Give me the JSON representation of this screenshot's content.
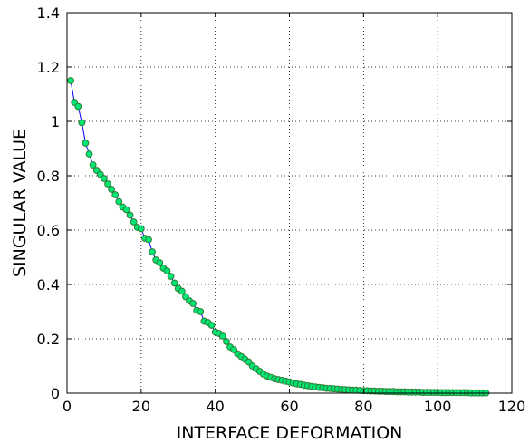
{
  "chart_data": {
    "type": "line",
    "title": "",
    "xlabel": "INTERFACE DEFORMATION",
    "ylabel": "SINGULAR VALUE",
    "xlim": [
      0,
      120
    ],
    "ylim": [
      0,
      1.4
    ],
    "xticks": [
      "0",
      "20",
      "40",
      "60",
      "80",
      "100",
      "120"
    ],
    "yticks": [
      "0",
      "0.2",
      "0.4",
      "0.6",
      "0.8",
      "1",
      "1.2",
      "1.4"
    ],
    "grid": true,
    "grid_style": "dotted",
    "legend": "none",
    "line_color": "#0000ff",
    "marker_fill": "#00e676",
    "marker_edge": "#2e7d32",
    "series": [
      {
        "x": [
          1,
          2,
          3,
          4,
          5,
          6,
          7,
          8,
          9,
          10,
          11,
          12,
          13,
          14,
          15,
          16,
          17,
          18,
          19,
          20,
          21,
          22,
          23,
          24,
          25,
          26,
          27,
          28,
          29,
          30,
          31,
          32,
          33,
          34,
          35,
          36,
          37,
          38,
          39,
          40,
          41,
          42,
          43,
          44,
          45,
          46,
          47,
          48,
          49,
          50,
          51,
          52,
          53,
          54,
          55,
          56,
          57,
          58,
          59,
          60,
          61,
          62,
          63,
          64,
          65,
          66,
          67,
          68,
          69,
          70,
          71,
          72,
          73,
          74,
          75,
          76,
          77,
          78,
          79,
          80,
          81,
          82,
          83,
          84,
          85,
          86,
          87,
          88,
          89,
          90,
          91,
          92,
          93,
          94,
          95,
          96,
          97,
          98,
          99,
          100,
          101,
          102,
          103,
          104,
          105,
          106,
          107,
          108,
          109,
          110,
          111,
          112,
          113
        ],
        "y": [
          1.15,
          1.07,
          1.055,
          0.995,
          0.92,
          0.88,
          0.84,
          0.82,
          0.805,
          0.79,
          0.77,
          0.75,
          0.73,
          0.705,
          0.685,
          0.675,
          0.655,
          0.63,
          0.61,
          0.605,
          0.57,
          0.565,
          0.52,
          0.49,
          0.48,
          0.46,
          0.45,
          0.43,
          0.405,
          0.385,
          0.375,
          0.355,
          0.34,
          0.33,
          0.305,
          0.3,
          0.265,
          0.26,
          0.25,
          0.225,
          0.22,
          0.21,
          0.19,
          0.17,
          0.16,
          0.145,
          0.135,
          0.125,
          0.115,
          0.1,
          0.09,
          0.08,
          0.07,
          0.063,
          0.058,
          0.053,
          0.05,
          0.047,
          0.044,
          0.041,
          0.037,
          0.034,
          0.032,
          0.029,
          0.027,
          0.025,
          0.023,
          0.021,
          0.02,
          0.018,
          0.017,
          0.016,
          0.015,
          0.014,
          0.013,
          0.012,
          0.011,
          0.011,
          0.01,
          0.009,
          0.009,
          0.008,
          0.008,
          0.007,
          0.007,
          0.006,
          0.006,
          0.006,
          0.005,
          0.005,
          0.005,
          0.004,
          0.004,
          0.004,
          0.004,
          0.003,
          0.003,
          0.003,
          0.003,
          0.003,
          0.002,
          0.002,
          0.002,
          0.002,
          0.002,
          0.002,
          0.002,
          0.002,
          0.001,
          0.001,
          0.001,
          0.001,
          0.001
        ]
      }
    ]
  }
}
